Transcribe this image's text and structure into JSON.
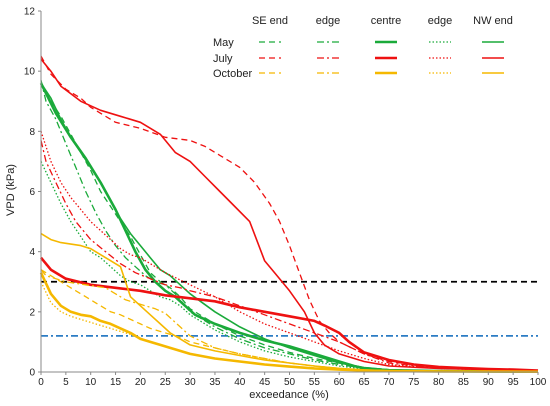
{
  "chart_data": {
    "type": "line",
    "xlabel": "exceedance (%)",
    "ylabel": "VPD (kPa)",
    "xlim": [
      0,
      100
    ],
    "ylim": [
      0,
      12
    ],
    "x_ticks": [
      "0",
      "5",
      "10",
      "15",
      "20",
      "25",
      "30",
      "35",
      "40",
      "45",
      "50",
      "55",
      "60",
      "65",
      "70",
      "75",
      "80",
      "85",
      "90",
      "95",
      "100"
    ],
    "y_ticks": [
      "0",
      "2",
      "4",
      "6",
      "8",
      "10",
      "12"
    ],
    "grid": false,
    "legend": {
      "placement": "top-right",
      "columns": [
        "SE end",
        "edge",
        "centre",
        "edge",
        "NW end"
      ],
      "rows": [
        "May",
        "July",
        "October"
      ]
    },
    "month_colors": {
      "May": "#1aaa3a",
      "July": "#ee1111",
      "October": "#f5b800"
    },
    "reference_lines": [
      {
        "y": 3.0,
        "color": "#000000",
        "style": "dash"
      },
      {
        "y": 1.2,
        "color": "#2b7cc4",
        "style": "dashdot"
      }
    ],
    "series": [
      {
        "month": "May",
        "position": "SE end",
        "style": "dash",
        "x": [
          0,
          2,
          4,
          6,
          8,
          10,
          12,
          14,
          16,
          18,
          20,
          22,
          24,
          26,
          28,
          30,
          35,
          40,
          45,
          50,
          55,
          60,
          65,
          70,
          80,
          100
        ],
        "y": [
          9.6,
          9.0,
          8.5,
          7.9,
          7.3,
          6.7,
          6.0,
          5.5,
          5.0,
          4.5,
          3.9,
          3.3,
          3.0,
          2.8,
          2.5,
          2.1,
          1.6,
          1.2,
          0.9,
          0.65,
          0.45,
          0.3,
          0.15,
          0.08,
          0.04,
          0.02
        ]
      },
      {
        "month": "May",
        "position": "edge (SE)",
        "style": "dashdot",
        "x": [
          0,
          1,
          3,
          5,
          7,
          9,
          11,
          13,
          15,
          17,
          19,
          21,
          23,
          25,
          27,
          30,
          35,
          40,
          45,
          50,
          55,
          60,
          65,
          70,
          80,
          100
        ],
        "y": [
          9.7,
          9.0,
          8.4,
          7.6,
          6.8,
          6.0,
          5.3,
          4.7,
          4.2,
          3.8,
          3.5,
          3.2,
          3.0,
          2.9,
          2.6,
          2.0,
          1.5,
          1.1,
          0.8,
          0.6,
          0.4,
          0.25,
          0.12,
          0.06,
          0.03,
          0.01
        ]
      },
      {
        "month": "May",
        "position": "centre",
        "style": "thick",
        "x": [
          0,
          3,
          6,
          9,
          12,
          15,
          17,
          19,
          21,
          23,
          25,
          27,
          29,
          31,
          35,
          40,
          45,
          50,
          55,
          60,
          63,
          65,
          70,
          80,
          100
        ],
        "y": [
          9.6,
          8.6,
          7.8,
          7.1,
          6.3,
          5.4,
          4.7,
          4.0,
          3.4,
          3.0,
          2.7,
          2.5,
          2.2,
          1.9,
          1.6,
          1.3,
          1.05,
          0.85,
          0.6,
          0.35,
          0.2,
          0.12,
          0.06,
          0.03,
          0.01
        ]
      },
      {
        "month": "May",
        "position": "edge (NW)",
        "style": "dot",
        "x": [
          0,
          2,
          4,
          6,
          8,
          10,
          12,
          14,
          16,
          18,
          20,
          22,
          24,
          26,
          28,
          30,
          35,
          40,
          45,
          50,
          55,
          60,
          65,
          70,
          80,
          100
        ],
        "y": [
          7.0,
          6.3,
          5.6,
          5.0,
          4.5,
          4.0,
          3.8,
          3.5,
          3.2,
          3.0,
          2.9,
          2.7,
          2.5,
          2.4,
          2.2,
          1.9,
          1.4,
          1.0,
          0.7,
          0.5,
          0.35,
          0.2,
          0.1,
          0.05,
          0.03,
          0.01
        ]
      },
      {
        "month": "May",
        "position": "NW end",
        "style": "solid",
        "x": [
          0,
          2,
          4,
          6,
          8,
          10,
          12,
          14,
          16,
          18,
          20,
          22,
          24,
          26,
          28,
          30,
          35,
          40,
          45,
          50,
          55,
          60,
          65,
          70,
          80,
          100
        ],
        "y": [
          9.6,
          9.1,
          8.4,
          7.8,
          7.3,
          6.8,
          6.3,
          5.7,
          5.1,
          4.6,
          4.2,
          3.8,
          3.4,
          3.2,
          2.9,
          2.6,
          2.0,
          1.5,
          1.1,
          0.8,
          0.55,
          0.3,
          0.15,
          0.07,
          0.03,
          0.01
        ]
      },
      {
        "month": "July",
        "position": "SE end",
        "style": "dash",
        "x": [
          0,
          2,
          5,
          8,
          10,
          15,
          20,
          25,
          30,
          33,
          36,
          40,
          43,
          46,
          48,
          50,
          52,
          54,
          56,
          58,
          60,
          65,
          70,
          80,
          100
        ],
        "y": [
          10.5,
          9.9,
          9.4,
          9.1,
          8.8,
          8.3,
          8.1,
          7.8,
          7.7,
          7.5,
          7.2,
          6.8,
          6.3,
          5.6,
          5.0,
          4.2,
          3.3,
          2.4,
          1.7,
          1.3,
          1.0,
          0.6,
          0.35,
          0.15,
          0.05
        ]
      },
      {
        "month": "July",
        "position": "edge (SE)",
        "style": "dashdot",
        "x": [
          0,
          1,
          3,
          5,
          7,
          10,
          13,
          16,
          19,
          22,
          25,
          28,
          30,
          35,
          40,
          45,
          50,
          55,
          60,
          65,
          70,
          80,
          100
        ],
        "y": [
          7.7,
          7.0,
          6.3,
          5.6,
          5.0,
          4.4,
          4.0,
          3.6,
          3.3,
          3.1,
          2.9,
          2.8,
          2.7,
          2.5,
          2.2,
          1.9,
          1.6,
          1.3,
          1.0,
          0.6,
          0.3,
          0.12,
          0.03
        ]
      },
      {
        "month": "July",
        "position": "centre",
        "style": "thick",
        "x": [
          0,
          2,
          5,
          10,
          15,
          20,
          25,
          30,
          35,
          40,
          45,
          50,
          55,
          57,
          60,
          62,
          65,
          70,
          75,
          80,
          85,
          90,
          95,
          100
        ],
        "y": [
          3.8,
          3.4,
          3.1,
          2.9,
          2.8,
          2.7,
          2.55,
          2.45,
          2.35,
          2.15,
          2.0,
          1.85,
          1.7,
          1.55,
          1.3,
          1.0,
          0.65,
          0.4,
          0.25,
          0.17,
          0.13,
          0.1,
          0.08,
          0.05
        ]
      },
      {
        "month": "July",
        "position": "edge (NW)",
        "style": "dot",
        "x": [
          0,
          2,
          4,
          6,
          8,
          10,
          12,
          14,
          16,
          18,
          20,
          25,
          30,
          35,
          40,
          45,
          50,
          55,
          60,
          65,
          70,
          80,
          100
        ],
        "y": [
          8.0,
          7.0,
          6.3,
          5.8,
          5.4,
          5.0,
          4.7,
          4.4,
          4.1,
          3.9,
          3.8,
          3.3,
          2.9,
          2.5,
          2.0,
          1.6,
          1.3,
          1.0,
          0.7,
          0.45,
          0.25,
          0.12,
          0.03
        ]
      },
      {
        "month": "July",
        "position": "NW end",
        "style": "solid",
        "x": [
          0,
          2,
          4,
          8,
          12,
          16,
          20,
          24,
          27,
          30,
          33,
          36,
          39,
          42,
          45,
          47,
          50,
          53,
          55,
          57,
          60,
          65,
          70,
          80,
          100
        ],
        "y": [
          10.4,
          10.0,
          9.5,
          9.0,
          8.7,
          8.5,
          8.3,
          7.9,
          7.3,
          7.0,
          6.5,
          6.0,
          5.5,
          5.0,
          3.7,
          3.3,
          2.7,
          2.0,
          1.3,
          0.9,
          0.6,
          0.35,
          0.2,
          0.12,
          0.05
        ]
      },
      {
        "month": "October",
        "position": "SE end",
        "style": "dash",
        "x": [
          0,
          2,
          4,
          6,
          8,
          10,
          12,
          14,
          16,
          18,
          20,
          22,
          25,
          28,
          30,
          35,
          40,
          45,
          50,
          55,
          60,
          65,
          70,
          80,
          100
        ],
        "y": [
          3.4,
          3.2,
          3.0,
          2.8,
          2.6,
          2.4,
          2.2,
          2.0,
          1.9,
          1.75,
          1.6,
          1.45,
          1.3,
          1.15,
          1.0,
          0.8,
          0.6,
          0.45,
          0.3,
          0.2,
          0.12,
          0.07,
          0.04,
          0.02,
          0.01
        ]
      },
      {
        "month": "October",
        "position": "edge (SE)",
        "style": "dashdot",
        "x": [
          0,
          1,
          3,
          5,
          7,
          9,
          11,
          13,
          15,
          17,
          19,
          21,
          23,
          25,
          28,
          30,
          35,
          40,
          45,
          50,
          55,
          60,
          65,
          70,
          80,
          100
        ],
        "y": [
          3.4,
          3.2,
          3.1,
          3.0,
          2.95,
          2.9,
          2.85,
          2.8,
          2.6,
          2.4,
          2.3,
          2.2,
          2.1,
          1.95,
          1.5,
          1.2,
          0.8,
          0.6,
          0.45,
          0.3,
          0.2,
          0.12,
          0.07,
          0.04,
          0.02,
          0.01
        ]
      },
      {
        "month": "October",
        "position": "centre",
        "style": "thick",
        "x": [
          0,
          2,
          4,
          6,
          8,
          10,
          12,
          14,
          16,
          18,
          20,
          22,
          24,
          26,
          28,
          30,
          35,
          40,
          45,
          50,
          55,
          60,
          65,
          70,
          80,
          100
        ],
        "y": [
          3.3,
          2.6,
          2.2,
          2.0,
          1.9,
          1.85,
          1.7,
          1.6,
          1.45,
          1.3,
          1.1,
          1.0,
          0.9,
          0.8,
          0.7,
          0.6,
          0.45,
          0.35,
          0.25,
          0.18,
          0.12,
          0.08,
          0.05,
          0.03,
          0.02,
          0.01
        ]
      },
      {
        "month": "October",
        "position": "edge (NW)",
        "style": "dot",
        "x": [
          0,
          2,
          4,
          6,
          8,
          10,
          12,
          14,
          16,
          18,
          20,
          22,
          24,
          26,
          28,
          30,
          35,
          40,
          45,
          50,
          55,
          60,
          65,
          70,
          80,
          100
        ],
        "y": [
          3.0,
          2.3,
          2.0,
          1.85,
          1.75,
          1.65,
          1.55,
          1.45,
          1.35,
          1.25,
          1.1,
          1.0,
          0.9,
          0.8,
          0.7,
          0.6,
          0.45,
          0.35,
          0.25,
          0.18,
          0.12,
          0.08,
          0.05,
          0.03,
          0.02,
          0.01
        ]
      },
      {
        "month": "October",
        "position": "NW end",
        "style": "solid",
        "x": [
          0,
          2,
          4,
          6,
          8,
          10,
          12,
          14,
          15,
          16,
          17,
          18,
          20,
          22,
          24,
          26,
          28,
          30,
          35,
          40,
          45,
          50,
          55,
          60,
          65,
          70,
          80,
          100
        ],
        "y": [
          4.6,
          4.4,
          4.3,
          4.25,
          4.2,
          4.1,
          3.9,
          3.7,
          3.6,
          3.5,
          3.0,
          2.5,
          2.2,
          1.9,
          1.6,
          1.3,
          1.1,
          0.9,
          0.7,
          0.55,
          0.4,
          0.3,
          0.2,
          0.12,
          0.07,
          0.04,
          0.02,
          0.01
        ]
      }
    ]
  }
}
